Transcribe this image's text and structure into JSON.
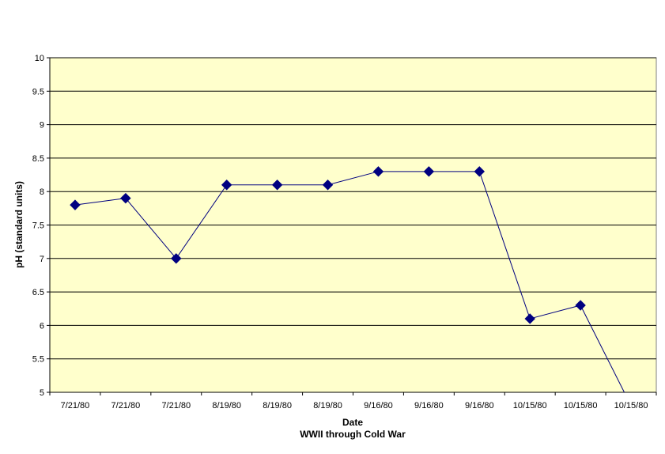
{
  "chart_data": {
    "type": "line",
    "categories": [
      "7/21/80",
      "7/21/80",
      "7/21/80",
      "8/19/80",
      "8/19/80",
      "8/19/80",
      "9/16/80",
      "9/16/80",
      "9/16/80",
      "10/15/80",
      "10/15/80",
      "10/15/80"
    ],
    "series": [
      {
        "values": [
          7.8,
          7.9,
          7.0,
          8.1,
          8.1,
          8.1,
          8.3,
          8.3,
          8.3,
          6.1,
          6.3,
          4.8
        ],
        "color": "#000080",
        "marker": "diamond",
        "line_color": "#00007f"
      }
    ],
    "xlabel": "Date",
    "subtitle": "WWII through Cold War",
    "ylabel": "pH (standard units)",
    "ylim": [
      5,
      10
    ],
    "yticks": [
      "5",
      "5.5",
      "6",
      "6.5",
      "7",
      "7.5",
      "8",
      "8.5",
      "9",
      "9.5",
      "10"
    ],
    "grid": true,
    "legend": "none",
    "plot_background": "#ffffcc"
  }
}
